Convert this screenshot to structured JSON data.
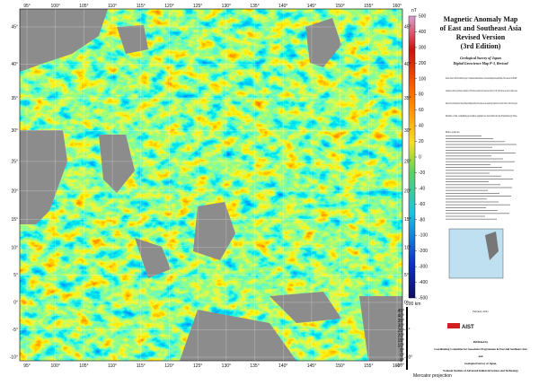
{
  "map": {
    "title_lines": [
      "Magnetic Anomaly Map",
      "of East and Southeast Asia",
      "Revised Version",
      "(3rd Edition)"
    ],
    "publisher_lines": [
      "Geological Survey of Japan",
      "Digital Geoscience Map P-3, Revised"
    ],
    "paragraphs": [
      "Product of the CCOP-GSJ-DGSM-J project \"Compilation and Publication of a Revised Magnetic Anomaly Map of East Asia in 1:4,000,000.\"",
      "Compiled on a mercator grid basis at altitudes of 1,500 m above ground level for land areas, and 0 m or 100 - 200 m above sea level for offshore areas.",
      "Reduced to the pole anomaly map of Thailand, Malaysia, Philippines and Papua New Guinea areas are compiled using Coimbatai data at altitudes of 500 m or 1,000 m above ground.",
      "Details of the compiling procedure applied are described in the Explanatory Note."
    ],
    "data_sources_heading": "Data sources",
    "date": "February 2021",
    "logo": "AIST",
    "footer_lines": [
      "Published by",
      "Coordinating Committee for Geoscience Programmes in East and Southeast Asia",
      "and",
      "Geological Survey of Japan,",
      "National Institute of Advanced Industrial Science and Technology"
    ],
    "longitudes": [
      {
        "value": 95,
        "label": "95°"
      },
      {
        "value": 100,
        "label": "100°"
      },
      {
        "value": 105,
        "label": "105°"
      },
      {
        "value": 110,
        "label": "110°"
      },
      {
        "value": 115,
        "label": "115°"
      },
      {
        "value": 120,
        "label": "120°"
      },
      {
        "value": 125,
        "label": "125°"
      },
      {
        "value": 130,
        "label": "130°"
      },
      {
        "value": 135,
        "label": "135°"
      },
      {
        "value": 140,
        "label": "140°"
      },
      {
        "value": 145,
        "label": "145°"
      },
      {
        "value": 150,
        "label": "150°"
      },
      {
        "value": 155,
        "label": "155°"
      },
      {
        "value": 160,
        "label": "160°"
      }
    ],
    "latitudes": [
      {
        "value": 45,
        "label": "45°"
      },
      {
        "value": 40,
        "label": "40°"
      },
      {
        "value": 35,
        "label": "35°"
      },
      {
        "value": 30,
        "label": "30°"
      },
      {
        "value": 25,
        "label": "25°"
      },
      {
        "value": 20,
        "label": "20°"
      },
      {
        "value": 15,
        "label": "15°"
      },
      {
        "value": 10,
        "label": "10°"
      },
      {
        "value": 5,
        "label": "5°"
      },
      {
        "value": 0,
        "label": "0°"
      },
      {
        "value": -5,
        "label": "-5°"
      },
      {
        "value": -10,
        "label": "-10°"
      }
    ],
    "colorbar": {
      "unit": "nT",
      "ticks": [
        500,
        400,
        300,
        200,
        100,
        80,
        60,
        40,
        20,
        0,
        -20,
        -40,
        -60,
        -80,
        -100,
        -200,
        -300,
        -400,
        -500
      ]
    },
    "scale_bar": "200 km",
    "projection": "Mercator projection"
  }
}
